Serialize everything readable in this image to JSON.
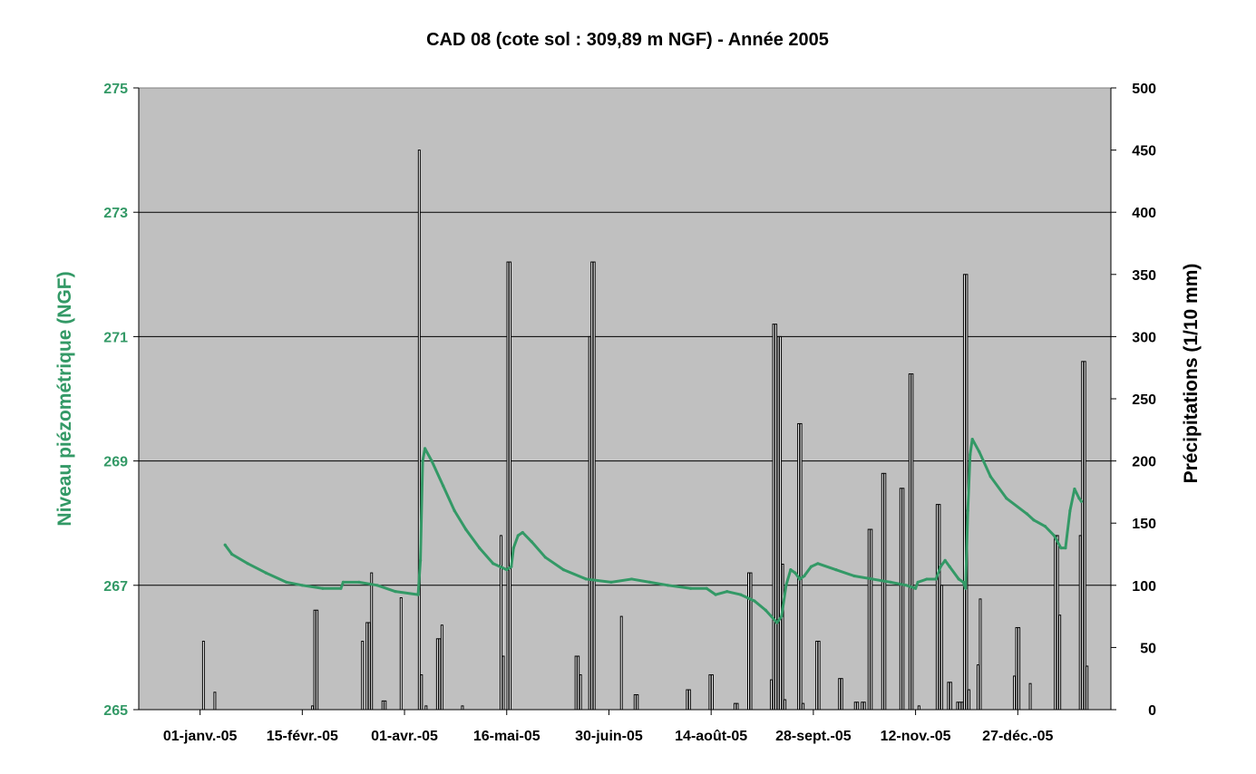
{
  "chart_data": {
    "type": "bar+line",
    "title": "CAD 08 (cote sol : 309,89 m NGF) - Année 2005",
    "left_axis": {
      "label": "Niveau piézométrique (NGF)",
      "range": [
        265,
        275
      ],
      "ticks": [
        "265",
        "267",
        "269",
        "271",
        "273",
        "275"
      ]
    },
    "right_axis": {
      "label": "Précipitations (1/10 mm)",
      "range": [
        0,
        500
      ],
      "ticks": [
        "0",
        "50",
        "100",
        "150",
        "200",
        "250",
        "300",
        "350",
        "400",
        "450",
        "500"
      ]
    },
    "x_axis": {
      "range": [
        "2004-12-05",
        "2006-02-06"
      ],
      "tick_dates": [
        "2005-01-01",
        "2005-02-15",
        "2005-04-01",
        "2005-05-16",
        "2005-06-30",
        "2005-08-14",
        "2005-09-28",
        "2005-11-12",
        "2005-12-27"
      ],
      "tick_labels": [
        "01-janv.-05",
        "15-févr.-05",
        "01-avr.-05",
        "16-mai-05",
        "30-juin-05",
        "14-août-05",
        "28-sept.-05",
        "12-nov.-05",
        "27-déc.-05"
      ]
    },
    "grid": true,
    "plot_background": "#c0c0c0",
    "colors": {
      "water_level": "#339966",
      "precipitation": "#000000"
    },
    "series": [
      {
        "type": "bar",
        "axis": "right",
        "values": [
          {
            "x": "2005-01-02",
            "y": 55
          },
          {
            "x": "2005-01-07",
            "y": 14
          },
          {
            "x": "2005-02-19",
            "y": 3
          },
          {
            "x": "2005-02-20",
            "y": 80
          },
          {
            "x": "2005-02-21",
            "y": 80
          },
          {
            "x": "2005-03-13",
            "y": 55
          },
          {
            "x": "2005-03-15",
            "y": 70
          },
          {
            "x": "2005-03-16",
            "y": 70
          },
          {
            "x": "2005-03-17",
            "y": 110
          },
          {
            "x": "2005-03-22",
            "y": 7
          },
          {
            "x": "2005-03-23",
            "y": 7
          },
          {
            "x": "2005-03-30",
            "y": 90
          },
          {
            "x": "2005-04-07",
            "y": 450
          },
          {
            "x": "2005-04-08",
            "y": 28
          },
          {
            "x": "2005-04-10",
            "y": 3
          },
          {
            "x": "2005-04-15",
            "y": 57
          },
          {
            "x": "2005-04-16",
            "y": 57
          },
          {
            "x": "2005-04-17",
            "y": 68
          },
          {
            "x": "2005-04-26",
            "y": 3
          },
          {
            "x": "2005-05-13",
            "y": 140
          },
          {
            "x": "2005-05-14",
            "y": 43
          },
          {
            "x": "2005-05-16",
            "y": 360
          },
          {
            "x": "2005-05-17",
            "y": 360
          },
          {
            "x": "2005-06-15",
            "y": 43
          },
          {
            "x": "2005-06-16",
            "y": 43
          },
          {
            "x": "2005-06-17",
            "y": 28
          },
          {
            "x": "2005-06-21",
            "y": 300
          },
          {
            "x": "2005-06-22",
            "y": 360
          },
          {
            "x": "2005-06-23",
            "y": 360
          },
          {
            "x": "2005-07-05",
            "y": 75
          },
          {
            "x": "2005-07-11",
            "y": 12
          },
          {
            "x": "2005-07-12",
            "y": 12
          },
          {
            "x": "2005-08-03",
            "y": 16
          },
          {
            "x": "2005-08-04",
            "y": 16
          },
          {
            "x": "2005-08-13",
            "y": 28
          },
          {
            "x": "2005-08-14",
            "y": 28
          },
          {
            "x": "2005-08-24",
            "y": 5
          },
          {
            "x": "2005-08-25",
            "y": 5
          },
          {
            "x": "2005-08-30",
            "y": 110
          },
          {
            "x": "2005-08-31",
            "y": 110
          },
          {
            "x": "2005-09-09",
            "y": 24
          },
          {
            "x": "2005-09-10",
            "y": 310
          },
          {
            "x": "2005-09-11",
            "y": 310
          },
          {
            "x": "2005-09-12",
            "y": 300
          },
          {
            "x": "2005-09-13",
            "y": 300
          },
          {
            "x": "2005-09-14",
            "y": 117
          },
          {
            "x": "2005-09-15",
            "y": 8
          },
          {
            "x": "2005-09-21",
            "y": 230
          },
          {
            "x": "2005-09-22",
            "y": 230
          },
          {
            "x": "2005-09-23",
            "y": 5
          },
          {
            "x": "2005-09-29",
            "y": 55
          },
          {
            "x": "2005-09-30",
            "y": 55
          },
          {
            "x": "2005-10-09",
            "y": 25
          },
          {
            "x": "2005-10-10",
            "y": 25
          },
          {
            "x": "2005-10-16",
            "y": 6
          },
          {
            "x": "2005-10-17",
            "y": 6
          },
          {
            "x": "2005-10-19",
            "y": 6
          },
          {
            "x": "2005-10-20",
            "y": 6
          },
          {
            "x": "2005-10-22",
            "y": 145
          },
          {
            "x": "2005-10-23",
            "y": 145
          },
          {
            "x": "2005-10-28",
            "y": 190
          },
          {
            "x": "2005-10-29",
            "y": 190
          },
          {
            "x": "2005-11-05",
            "y": 178
          },
          {
            "x": "2005-11-06",
            "y": 178
          },
          {
            "x": "2005-11-09",
            "y": 270
          },
          {
            "x": "2005-11-10",
            "y": 270
          },
          {
            "x": "2005-11-13",
            "y": 3
          },
          {
            "x": "2005-11-21",
            "y": 165
          },
          {
            "x": "2005-11-22",
            "y": 165
          },
          {
            "x": "2005-11-23",
            "y": 100
          },
          {
            "x": "2005-11-26",
            "y": 22
          },
          {
            "x": "2005-11-27",
            "y": 22
          },
          {
            "x": "2005-11-30",
            "y": 6
          },
          {
            "x": "2005-12-01",
            "y": 6
          },
          {
            "x": "2005-12-02",
            "y": 6
          },
          {
            "x": "2005-12-03",
            "y": 350
          },
          {
            "x": "2005-12-04",
            "y": 350
          },
          {
            "x": "2005-12-05",
            "y": 16
          },
          {
            "x": "2005-12-09",
            "y": 36
          },
          {
            "x": "2005-12-10",
            "y": 89
          },
          {
            "x": "2005-12-25",
            "y": 27
          },
          {
            "x": "2005-12-26",
            "y": 66
          },
          {
            "x": "2005-12-27",
            "y": 66
          },
          {
            "x": "2006-01-01",
            "y": 21
          },
          {
            "x": "2006-01-12",
            "y": 140
          },
          {
            "x": "2006-01-13",
            "y": 140
          },
          {
            "x": "2006-01-14",
            "y": 76
          },
          {
            "x": "2006-01-23",
            "y": 140
          },
          {
            "x": "2006-01-24",
            "y": 280
          },
          {
            "x": "2006-01-25",
            "y": 280
          },
          {
            "x": "2006-01-26",
            "y": 35
          }
        ]
      },
      {
        "type": "line",
        "axis": "left",
        "values": [
          {
            "x": "2005-01-12",
            "y": 267.65
          },
          {
            "x": "2005-01-15",
            "y": 267.5
          },
          {
            "x": "2005-01-22",
            "y": 267.35
          },
          {
            "x": "2005-01-30",
            "y": 267.2
          },
          {
            "x": "2005-02-08",
            "y": 267.05
          },
          {
            "x": "2005-02-15",
            "y": 267.0
          },
          {
            "x": "2005-02-24",
            "y": 266.95
          },
          {
            "x": "2005-03-04",
            "y": 266.95
          },
          {
            "x": "2005-03-05",
            "y": 267.05
          },
          {
            "x": "2005-03-12",
            "y": 267.05
          },
          {
            "x": "2005-03-20",
            "y": 267.0
          },
          {
            "x": "2005-03-28",
            "y": 266.9
          },
          {
            "x": "2005-04-07",
            "y": 266.85
          },
          {
            "x": "2005-04-08",
            "y": 267.4
          },
          {
            "x": "2005-04-09",
            "y": 269.0
          },
          {
            "x": "2005-04-10",
            "y": 269.2
          },
          {
            "x": "2005-04-13",
            "y": 269.0
          },
          {
            "x": "2005-04-18",
            "y": 268.6
          },
          {
            "x": "2005-04-23",
            "y": 268.2
          },
          {
            "x": "2005-04-28",
            "y": 267.9
          },
          {
            "x": "2005-05-04",
            "y": 267.6
          },
          {
            "x": "2005-05-10",
            "y": 267.35
          },
          {
            "x": "2005-05-16",
            "y": 267.25
          },
          {
            "x": "2005-05-18",
            "y": 267.3
          },
          {
            "x": "2005-05-19",
            "y": 267.6
          },
          {
            "x": "2005-05-21",
            "y": 267.8
          },
          {
            "x": "2005-05-23",
            "y": 267.85
          },
          {
            "x": "2005-05-27",
            "y": 267.7
          },
          {
            "x": "2005-06-02",
            "y": 267.45
          },
          {
            "x": "2005-06-10",
            "y": 267.25
          },
          {
            "x": "2005-06-20",
            "y": 267.1
          },
          {
            "x": "2005-07-01",
            "y": 267.05
          },
          {
            "x": "2005-07-10",
            "y": 267.1
          },
          {
            "x": "2005-07-18",
            "y": 267.05
          },
          {
            "x": "2005-07-26",
            "y": 267.0
          },
          {
            "x": "2005-08-05",
            "y": 266.95
          },
          {
            "x": "2005-08-12",
            "y": 266.95
          },
          {
            "x": "2005-08-16",
            "y": 266.85
          },
          {
            "x": "2005-08-21",
            "y": 266.9
          },
          {
            "x": "2005-08-27",
            "y": 266.85
          },
          {
            "x": "2005-09-02",
            "y": 266.75
          },
          {
            "x": "2005-09-07",
            "y": 266.6
          },
          {
            "x": "2005-09-12",
            "y": 266.4
          },
          {
            "x": "2005-09-14",
            "y": 266.5
          },
          {
            "x": "2005-09-16",
            "y": 267.0
          },
          {
            "x": "2005-09-18",
            "y": 267.25
          },
          {
            "x": "2005-09-20",
            "y": 267.2
          },
          {
            "x": "2005-09-22",
            "y": 267.1
          },
          {
            "x": "2005-09-24",
            "y": 267.15
          },
          {
            "x": "2005-09-27",
            "y": 267.3
          },
          {
            "x": "2005-09-30",
            "y": 267.35
          },
          {
            "x": "2005-10-08",
            "y": 267.25
          },
          {
            "x": "2005-10-16",
            "y": 267.15
          },
          {
            "x": "2005-10-24",
            "y": 267.1
          },
          {
            "x": "2005-11-01",
            "y": 267.05
          },
          {
            "x": "2005-11-08",
            "y": 267.0
          },
          {
            "x": "2005-11-12",
            "y": 266.95
          },
          {
            "x": "2005-11-13",
            "y": 267.05
          },
          {
            "x": "2005-11-17",
            "y": 267.1
          },
          {
            "x": "2005-11-21",
            "y": 267.1
          },
          {
            "x": "2005-11-23",
            "y": 267.3
          },
          {
            "x": "2005-11-25",
            "y": 267.4
          },
          {
            "x": "2005-11-27",
            "y": 267.3
          },
          {
            "x": "2005-12-01",
            "y": 267.1
          },
          {
            "x": "2005-12-03",
            "y": 267.05
          },
          {
            "x": "2005-12-04",
            "y": 266.95
          },
          {
            "x": "2005-12-05",
            "y": 268.2
          },
          {
            "x": "2005-12-06",
            "y": 269.1
          },
          {
            "x": "2005-12-07",
            "y": 269.35
          },
          {
            "x": "2005-12-10",
            "y": 269.15
          },
          {
            "x": "2005-12-15",
            "y": 268.75
          },
          {
            "x": "2005-12-22",
            "y": 268.4
          },
          {
            "x": "2005-12-31",
            "y": 268.15
          },
          {
            "x": "2006-01-03",
            "y": 268.05
          },
          {
            "x": "2006-01-08",
            "y": 267.95
          },
          {
            "x": "2006-01-12",
            "y": 267.8
          },
          {
            "x": "2006-01-15",
            "y": 267.6
          },
          {
            "x": "2006-01-17",
            "y": 267.6
          },
          {
            "x": "2006-01-19",
            "y": 268.2
          },
          {
            "x": "2006-01-21",
            "y": 268.55
          },
          {
            "x": "2006-01-23",
            "y": 268.4
          },
          {
            "x": "2006-01-24",
            "y": 268.35
          }
        ]
      }
    ]
  }
}
